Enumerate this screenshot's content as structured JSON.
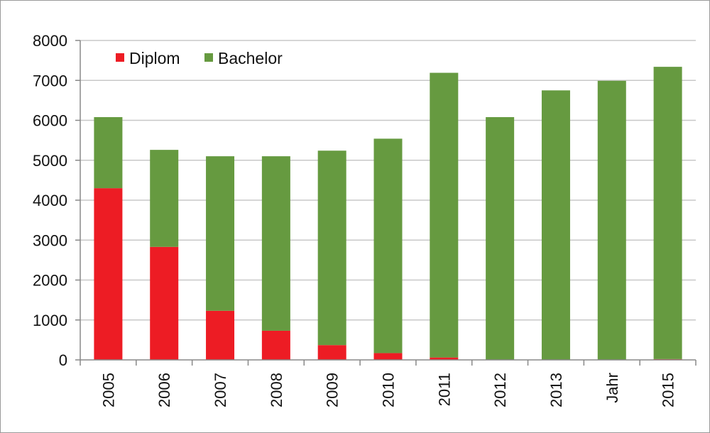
{
  "chart_data": {
    "type": "bar",
    "stacked": true,
    "categories": [
      "2005",
      "2006",
      "2007",
      "2008",
      "2009",
      "2010",
      "2011",
      "2012",
      "2013",
      "Jahr",
      "2015"
    ],
    "series": [
      {
        "name": "Diplom",
        "color": "#ed1c24",
        "values": [
          4300,
          2830,
          1230,
          730,
          370,
          170,
          60,
          0,
          0,
          0,
          20
        ]
      },
      {
        "name": "Bachelor",
        "color": "#669a40",
        "values": [
          1780,
          2430,
          3870,
          4370,
          4870,
          5370,
          7130,
          6080,
          6750,
          6990,
          7320
        ]
      }
    ],
    "ylim": [
      0,
      8000
    ],
    "yticks": [
      "0",
      "1000",
      "2000",
      "3000",
      "4000",
      "5000",
      "6000",
      "7000",
      "8000"
    ],
    "grid": true,
    "legend_position": "top-left"
  }
}
